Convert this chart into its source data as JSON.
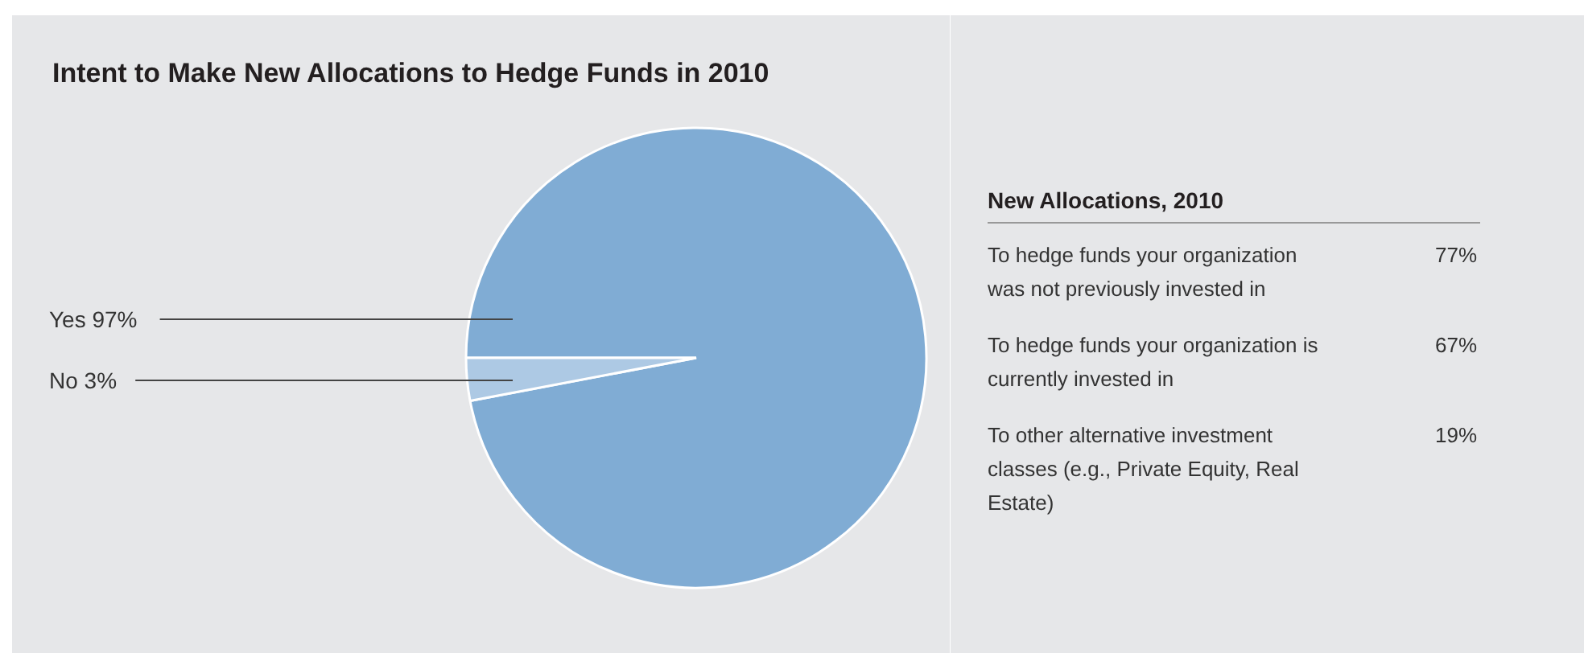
{
  "chart_data": [
    {
      "type": "pie",
      "title": "Intent to Make New Allocations to Hedge Funds in 2010",
      "categories": [
        "Yes",
        "No"
      ],
      "values": [
        97,
        3
      ],
      "colors": [
        "#80acd4",
        "#adc9e4"
      ],
      "value_labels": [
        "97%",
        "3%"
      ]
    },
    {
      "type": "other",
      "title": "New Allocations, 2010",
      "categories": [
        "To hedge funds your organization was not previously invested in",
        "To hedge funds your organization is currently invested in",
        "To other alternative investment classes (e.g., Private Equity, Real Estate)"
      ],
      "value_labels": [
        "77%",
        "67%",
        "19%"
      ]
    }
  ]
}
